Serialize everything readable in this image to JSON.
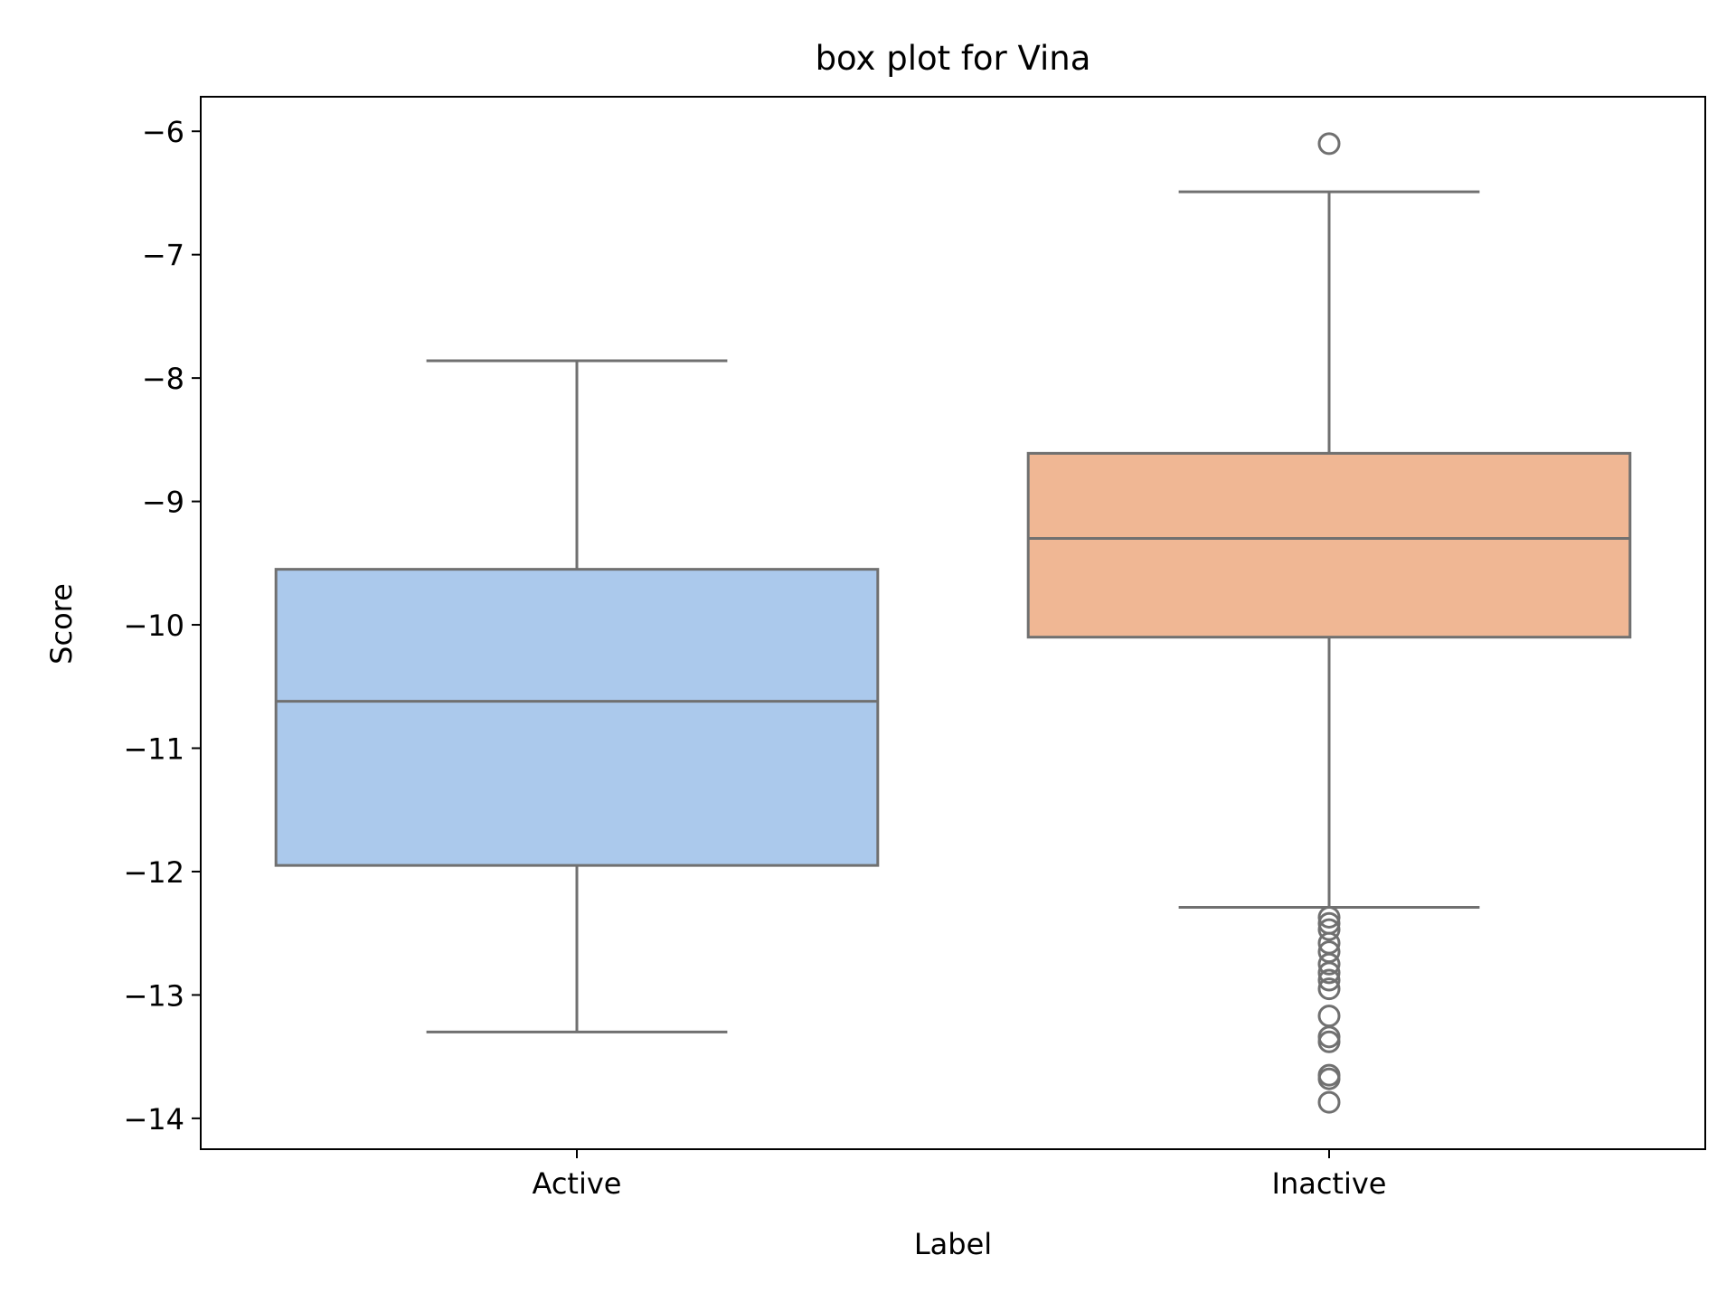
{
  "chart_data": {
    "type": "box",
    "title": "box plot for Vina",
    "xlabel": "Label",
    "ylabel": "Score",
    "ylim": [
      -14.25,
      -5.72
    ],
    "yticks": [
      "−14",
      "−13",
      "−12",
      "−11",
      "−10",
      "−9",
      "−8",
      "−7",
      "−6"
    ],
    "ytick_values": [
      -14,
      -13,
      -12,
      -11,
      -10,
      -9,
      -8,
      -7,
      -6
    ],
    "grid": false,
    "categories": [
      "Active",
      "Inactive"
    ],
    "boxes": [
      {
        "label": "Active",
        "whisker_low": -13.3,
        "q1": -11.95,
        "median": -10.62,
        "q3": -9.55,
        "whisker_high": -7.86,
        "outliers": [],
        "color": "#abc9ec"
      },
      {
        "label": "Inactive",
        "whisker_low": -12.29,
        "q1": -10.1,
        "median": -9.3,
        "q3": -8.61,
        "whisker_high": -6.49,
        "outliers": [
          -6.1,
          -12.37,
          -12.42,
          -12.47,
          -12.58,
          -12.65,
          -12.75,
          -12.82,
          -12.88,
          -12.95,
          -13.17,
          -13.34,
          -13.38,
          -13.65,
          -13.68,
          -13.87
        ],
        "color": "#f0b794"
      }
    ],
    "line_color": "#707070"
  }
}
